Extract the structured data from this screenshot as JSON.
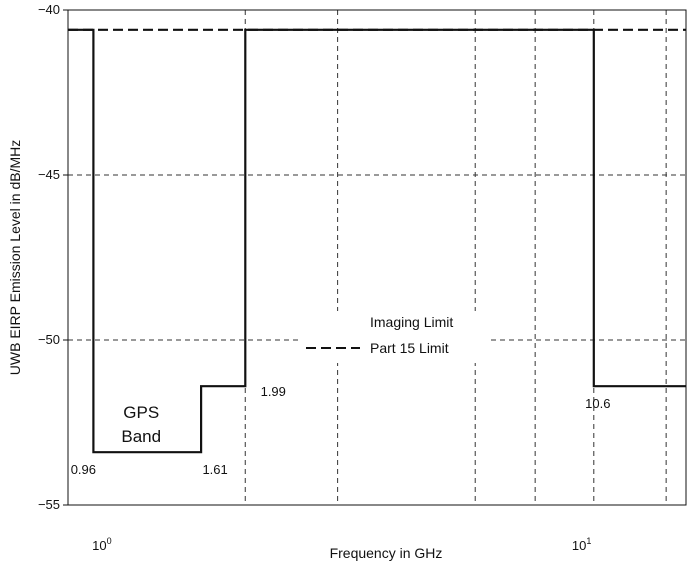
{
  "chart_data": {
    "type": "line",
    "title": "",
    "xlabel": "Frequency in GHz",
    "ylabel": "UWB EIRP Emission Level in dB/MHz",
    "x_scale": "log",
    "xlim": [
      0.85,
      16.5
    ],
    "ylim": [
      -55,
      -40
    ],
    "grid": true,
    "x_ticks": [
      {
        "value": 1,
        "base": "10",
        "exp": "0"
      },
      {
        "value": 10,
        "base": "10",
        "exp": "1"
      }
    ],
    "y_ticks": [
      {
        "value": -40,
        "label": "−40"
      },
      {
        "value": -45,
        "label": "−45"
      },
      {
        "value": -50,
        "label": "−50"
      },
      {
        "value": -55,
        "label": "−55"
      }
    ],
    "x_grid_values": [
      1.99,
      3.1,
      6.0,
      8.0,
      10.6,
      15.0
    ],
    "series": [
      {
        "name": "Imaging Limit",
        "style": "solid",
        "x": [
          0.85,
          0.96,
          0.96,
          1.61,
          1.61,
          1.99,
          1.99,
          10.6,
          10.6,
          16.5
        ],
        "y": [
          -40.6,
          -40.6,
          -53.4,
          -53.4,
          -51.4,
          -51.4,
          -40.6,
          -40.6,
          -51.4,
          -51.4
        ]
      },
      {
        "name": "Part 15 Limit",
        "style": "dashed",
        "x": [
          0.85,
          16.5
        ],
        "y": [
          -40.6,
          -40.6
        ]
      }
    ],
    "legend_position": "center-right",
    "annotations": [
      {
        "text": "0.96",
        "x": 0.96,
        "y": -53.4
      },
      {
        "text": "1.61",
        "x": 1.61,
        "y": -53.4
      },
      {
        "text": "1.99",
        "x": 1.99,
        "y": -51.4
      },
      {
        "text": "10.6",
        "x": 10.6,
        "y": -51.4
      }
    ],
    "band_label": {
      "line1": "GPS",
      "line2": "Band"
    }
  }
}
